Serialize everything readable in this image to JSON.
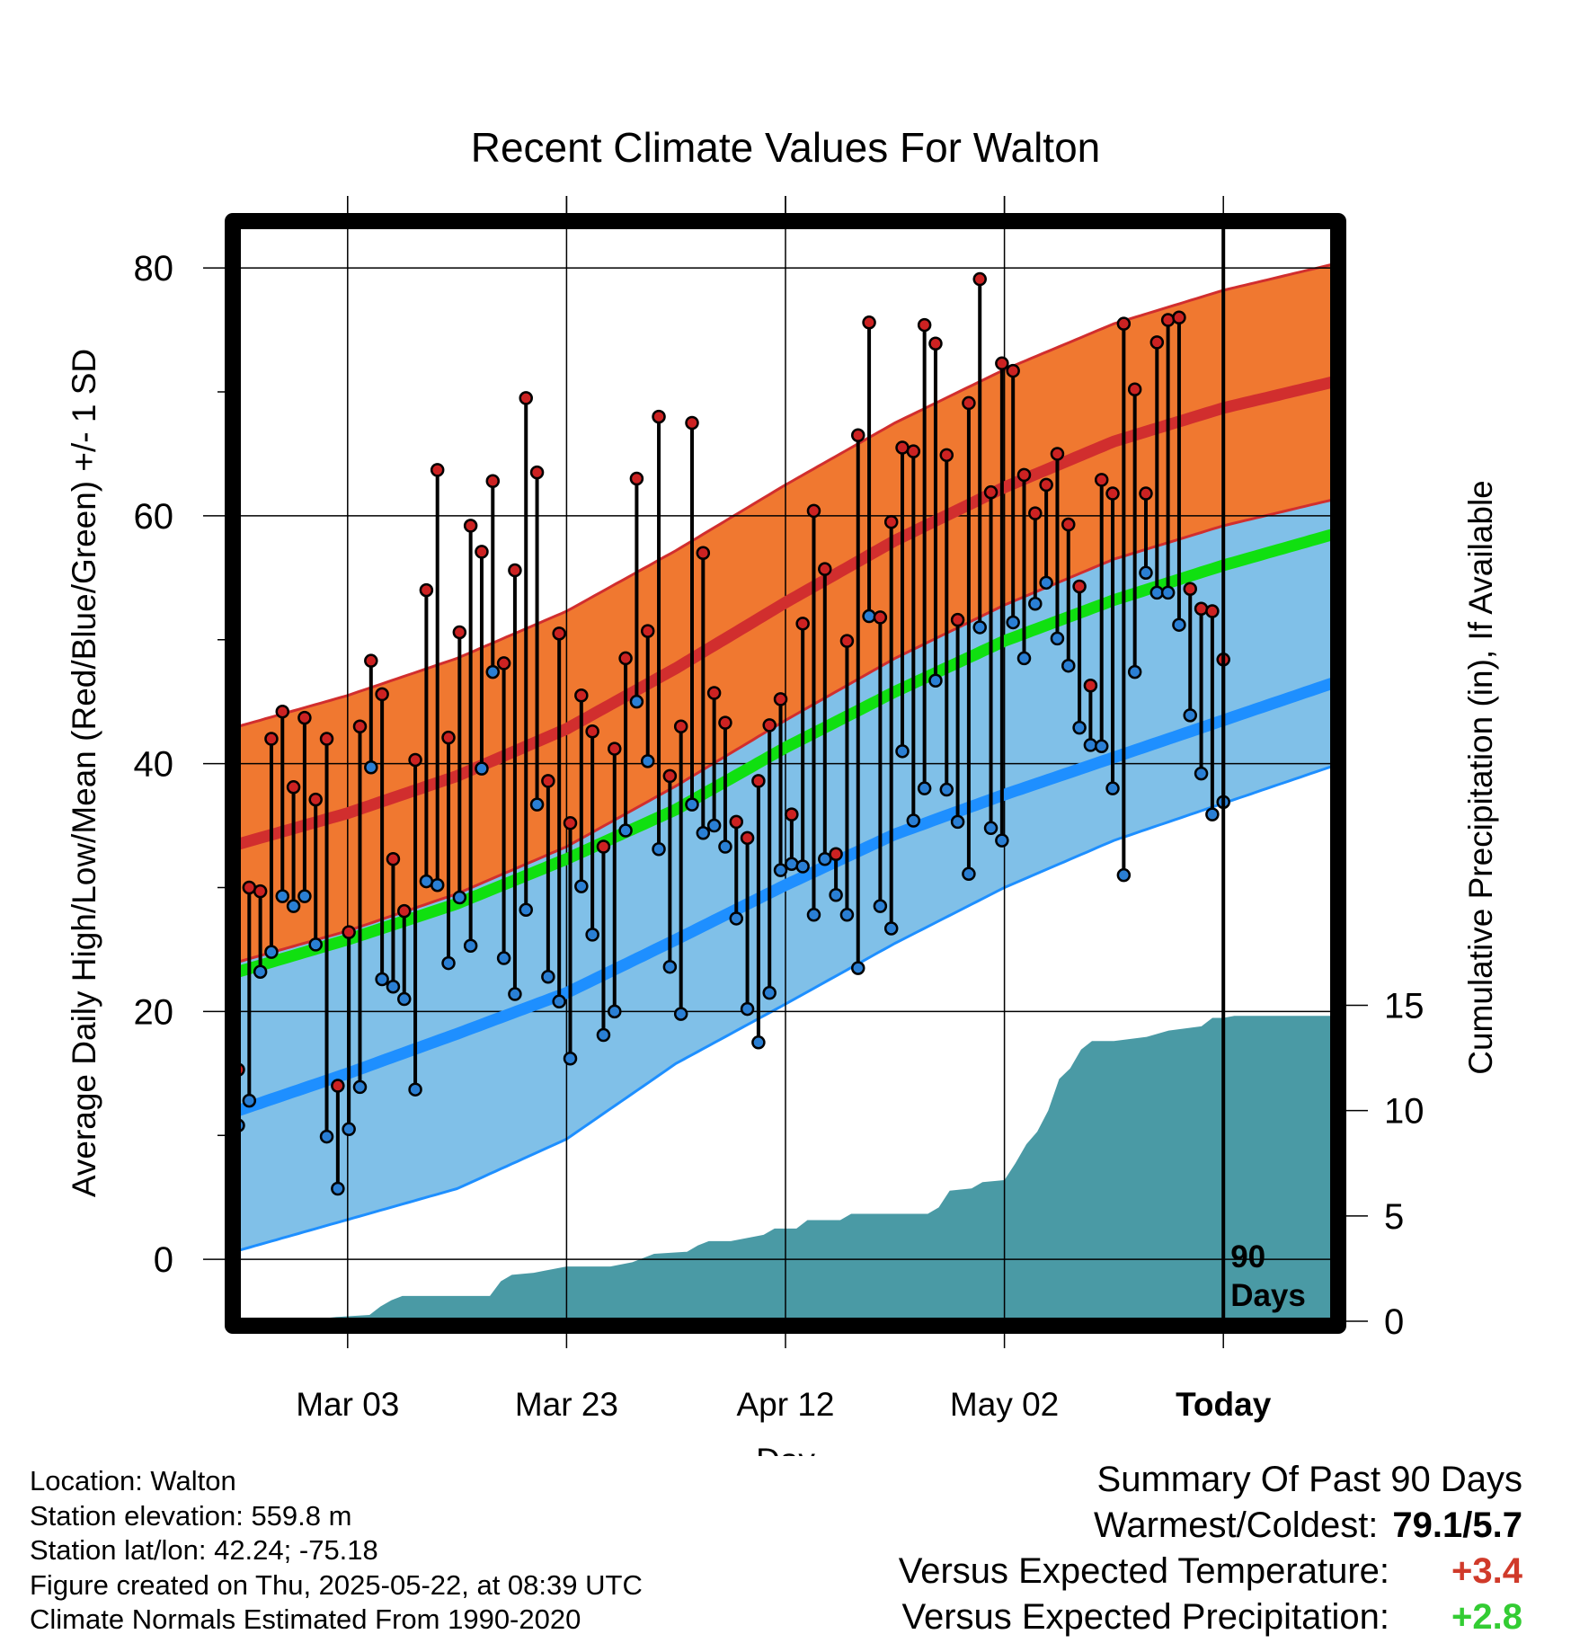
{
  "title": "Recent Climate Values For Walton",
  "chart_data": {
    "type": "line",
    "title": "Recent Climate Values For Walton",
    "xlabel": "Day",
    "ylabel": "Average Daily High/Low/Mean (Red/Blue/Green) +/- 1 SD",
    "y2label": "Cumulative Precipitation (in), If Available",
    "x_tick_labels": [
      "Mar 03",
      "Mar 23",
      "Apr 12",
      "May 02",
      "Today"
    ],
    "x_tick_days": [
      20,
      40,
      60,
      80,
      100
    ],
    "xlim": [
      10,
      110
    ],
    "ylim": [
      -5,
      84
    ],
    "y_ticks": [
      0,
      20,
      40,
      60,
      80
    ],
    "y2_ticks": [
      0,
      5,
      10,
      15
    ],
    "y2lim": [
      0,
      16
    ],
    "grid": true,
    "today_day": 100,
    "today_marker_label": [
      "90",
      "Days"
    ],
    "observed_series_days_start": 10,
    "highs": [
      15.3,
      30.0,
      29.7,
      42.0,
      44.2,
      38.1,
      43.7,
      37.1,
      42.0,
      14.0,
      26.4,
      43.0,
      48.3,
      45.6,
      32.3,
      28.1,
      40.3,
      54.0,
      63.7,
      42.1,
      50.6,
      59.2,
      57.1,
      62.8,
      48.1,
      55.6,
      69.5,
      63.5,
      38.6,
      50.5,
      35.2,
      45.5,
      42.6,
      33.3,
      41.2,
      48.5,
      63.0,
      50.7,
      68.0,
      39.0,
      43.0,
      67.5,
      57.0,
      45.7,
      43.3,
      35.3,
      34.0,
      38.6,
      43.1,
      45.2,
      35.9,
      51.3,
      60.4,
      55.7,
      32.7,
      49.9,
      66.5,
      75.6,
      51.8,
      59.5,
      65.5,
      65.2,
      75.4,
      73.9,
      64.9,
      51.6,
      69.1,
      79.1,
      61.9,
      72.3,
      71.7,
      63.3,
      60.2,
      62.5,
      65.0,
      59.3,
      54.3,
      46.3,
      62.9,
      61.8,
      75.5,
      70.2,
      61.8,
      74.0,
      75.8,
      76.0,
      54.1,
      52.5,
      52.3,
      48.4
    ],
    "lows": [
      10.8,
      12.8,
      23.2,
      24.8,
      29.3,
      28.5,
      29.3,
      25.4,
      9.9,
      5.7,
      10.5,
      13.9,
      39.7,
      22.6,
      22.0,
      21.0,
      13.7,
      30.5,
      30.2,
      23.9,
      29.2,
      25.3,
      39.6,
      47.4,
      24.3,
      21.4,
      28.2,
      36.7,
      22.8,
      20.8,
      16.2,
      30.1,
      26.2,
      18.1,
      20.0,
      34.6,
      45.0,
      40.2,
      33.1,
      23.6,
      19.8,
      36.7,
      34.4,
      35.0,
      33.3,
      27.5,
      20.2,
      17.5,
      21.5,
      31.4,
      31.9,
      31.7,
      27.8,
      32.3,
      29.4,
      27.8,
      23.5,
      51.9,
      28.5,
      26.7,
      41.0,
      35.4,
      38.0,
      46.7,
      37.9,
      35.3,
      31.1,
      51.0,
      34.8,
      33.8,
      51.4,
      48.5,
      52.9,
      54.6,
      50.1,
      47.9,
      42.9,
      41.5,
      41.4,
      38.0,
      31.0,
      47.4,
      55.4,
      53.8,
      53.8,
      51.2,
      43.9,
      39.2,
      35.9,
      36.9
    ],
    "normal_high_points": [
      [
        10,
        33.5
      ],
      [
        20,
        36.0
      ],
      [
        30,
        39.0
      ],
      [
        40,
        42.8
      ],
      [
        50,
        47.7
      ],
      [
        60,
        53.0
      ],
      [
        70,
        58.0
      ],
      [
        80,
        62.3
      ],
      [
        90,
        66.0
      ],
      [
        100,
        68.7
      ],
      [
        110,
        70.8
      ]
    ],
    "normal_high_sd": 9.5,
    "normal_low_points": [
      [
        10,
        12.0
      ],
      [
        20,
        15.0
      ],
      [
        30,
        18.2
      ],
      [
        40,
        21.5
      ],
      [
        50,
        25.8
      ],
      [
        60,
        30.2
      ],
      [
        70,
        34.3
      ],
      [
        80,
        37.5
      ],
      [
        90,
        40.5
      ],
      [
        100,
        43.5
      ],
      [
        110,
        46.5
      ]
    ],
    "normal_low_sd_upper": [
      [
        10,
        12.5
      ],
      [
        20,
        11.6
      ],
      [
        30,
        12.0
      ],
      [
        40,
        13.2
      ],
      [
        50,
        14.2
      ],
      [
        60,
        15.3
      ],
      [
        70,
        15.8
      ],
      [
        80,
        16.0
      ],
      [
        90,
        16.2
      ],
      [
        100,
        16.2
      ],
      [
        110,
        16.0
      ]
    ],
    "normal_low_sd_lower": [
      [
        10,
        11.3
      ],
      [
        20,
        11.8
      ],
      [
        30,
        12.5
      ],
      [
        40,
        11.8
      ],
      [
        50,
        10.0
      ],
      [
        60,
        9.6
      ],
      [
        70,
        8.8
      ],
      [
        80,
        7.5
      ],
      [
        90,
        6.7
      ],
      [
        100,
        6.7
      ],
      [
        110,
        6.7
      ]
    ],
    "normal_mean_points": [
      [
        10,
        23.2
      ],
      [
        20,
        25.8
      ],
      [
        30,
        28.7
      ],
      [
        40,
        32.3
      ],
      [
        50,
        36.3
      ],
      [
        60,
        41.3
      ],
      [
        70,
        45.8
      ],
      [
        80,
        49.9
      ],
      [
        90,
        53.2
      ],
      [
        100,
        56.0
      ],
      [
        110,
        58.5
      ]
    ],
    "precip_cumulative": [
      [
        10,
        0
      ],
      [
        16,
        0
      ],
      [
        17,
        0.1
      ],
      [
        19,
        0.2
      ],
      [
        22,
        0.3
      ],
      [
        23,
        0.7
      ],
      [
        24,
        1.0
      ],
      [
        25,
        1.2
      ],
      [
        33,
        1.2
      ],
      [
        34,
        1.9
      ],
      [
        35,
        2.2
      ],
      [
        37,
        2.3
      ],
      [
        38,
        2.4
      ],
      [
        40,
        2.6
      ],
      [
        44,
        2.6
      ],
      [
        45,
        2.7
      ],
      [
        46,
        2.8
      ],
      [
        48,
        3.2
      ],
      [
        51,
        3.3
      ],
      [
        52,
        3.6
      ],
      [
        53,
        3.8
      ],
      [
        55,
        3.8
      ],
      [
        58,
        4.1
      ],
      [
        59,
        4.4
      ],
      [
        61,
        4.4
      ],
      [
        62,
        4.8
      ],
      [
        65,
        4.8
      ],
      [
        66,
        5.1
      ],
      [
        73,
        5.1
      ],
      [
        74,
        5.4
      ],
      [
        75,
        6.2
      ],
      [
        77,
        6.3
      ],
      [
        78,
        6.6
      ],
      [
        80,
        6.7
      ],
      [
        81,
        7.5
      ],
      [
        82,
        8.4
      ],
      [
        83,
        9.0
      ],
      [
        84,
        10.0
      ],
      [
        85,
        11.5
      ],
      [
        86,
        12.0
      ],
      [
        87,
        12.9
      ],
      [
        88,
        13.3
      ],
      [
        90,
        13.3
      ],
      [
        93,
        13.5
      ],
      [
        95,
        13.8
      ],
      [
        98,
        14.0
      ],
      [
        99,
        14.4
      ],
      [
        100,
        14.4
      ],
      [
        101,
        14.5
      ],
      [
        110,
        14.5
      ]
    ],
    "colors": {
      "high_band": "#f07830",
      "high_line": "#d12e2e",
      "low_band": "#80c0e8",
      "low_line": "#1e8fff",
      "mean_line": "#10e010",
      "precip": "#4a9aa5",
      "high_marker": "#cc2222",
      "low_marker": "#2a7fd4"
    }
  },
  "info": {
    "location": "Location: Walton",
    "elevation": "Station elevation: 559.8 m",
    "latlon": "Station lat/lon: 42.24; -75.18",
    "created": "Figure created on Thu, 2025-05-22, at 08:39 UTC",
    "normals": "Climate Normals Estimated From 1990-2020"
  },
  "summary": {
    "heading": "Summary Of Past 90 Days",
    "warm_cold_label": "Warmest/Coldest:",
    "warm_cold_value": "79.1/5.7",
    "temp_label": "Versus Expected Temperature:",
    "temp_value": "+3.4",
    "precip_label": "Versus Expected Precipitation:",
    "precip_value": "+2.8"
  }
}
